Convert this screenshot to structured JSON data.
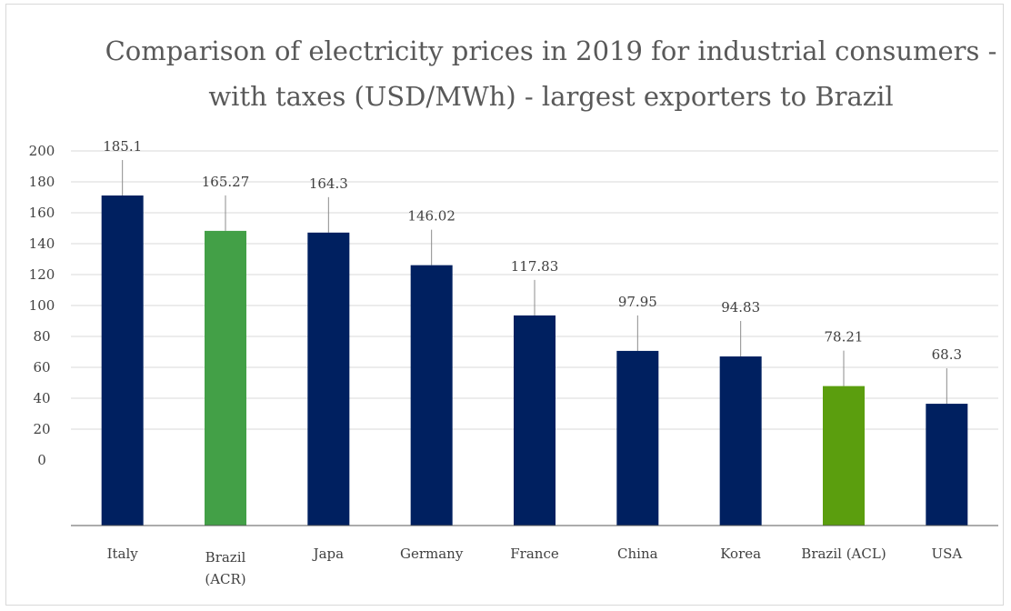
{
  "chart_data": {
    "type": "bar",
    "title": "Comparison of electricity prices in 2019 for industrial consumers - with taxes (USD/MWh) - largest exporters to Brazil",
    "title_lines": [
      "Comparison of electricity prices in 2019 for industrial consumers -",
      "with taxes (USD/MWh)  - largest exporters to Brazil"
    ],
    "categories": [
      [
        "Italy"
      ],
      [
        "Brazil",
        "(ACR)"
      ],
      [
        "Japa"
      ],
      [
        "Germany"
      ],
      [
        "France"
      ],
      [
        "China"
      ],
      [
        "Korea"
      ],
      [
        "Brazil (ACL)"
      ],
      [
        "USA"
      ]
    ],
    "values": [
      185.1,
      165.27,
      164.3,
      146.02,
      117.83,
      97.95,
      94.83,
      78.21,
      68.3
    ],
    "data_labels": [
      "185.1",
      "165.27",
      "164.3",
      "146.02",
      "117.83",
      "97.95",
      "94.83",
      "78.21",
      "68.3"
    ],
    "bar_colors": [
      "#002060",
      "#43a047",
      "#002060",
      "#002060",
      "#002060",
      "#002060",
      "#002060",
      "#5b9e0e",
      "#002060"
    ],
    "y_ticks": [
      "200",
      "180",
      "160",
      "140",
      "120",
      "100",
      "80",
      "60",
      "40",
      "20",
      "0"
    ],
    "ylim": [
      0,
      200
    ],
    "xlabel": "",
    "ylabel": "",
    "grid": true,
    "legend": "none"
  }
}
